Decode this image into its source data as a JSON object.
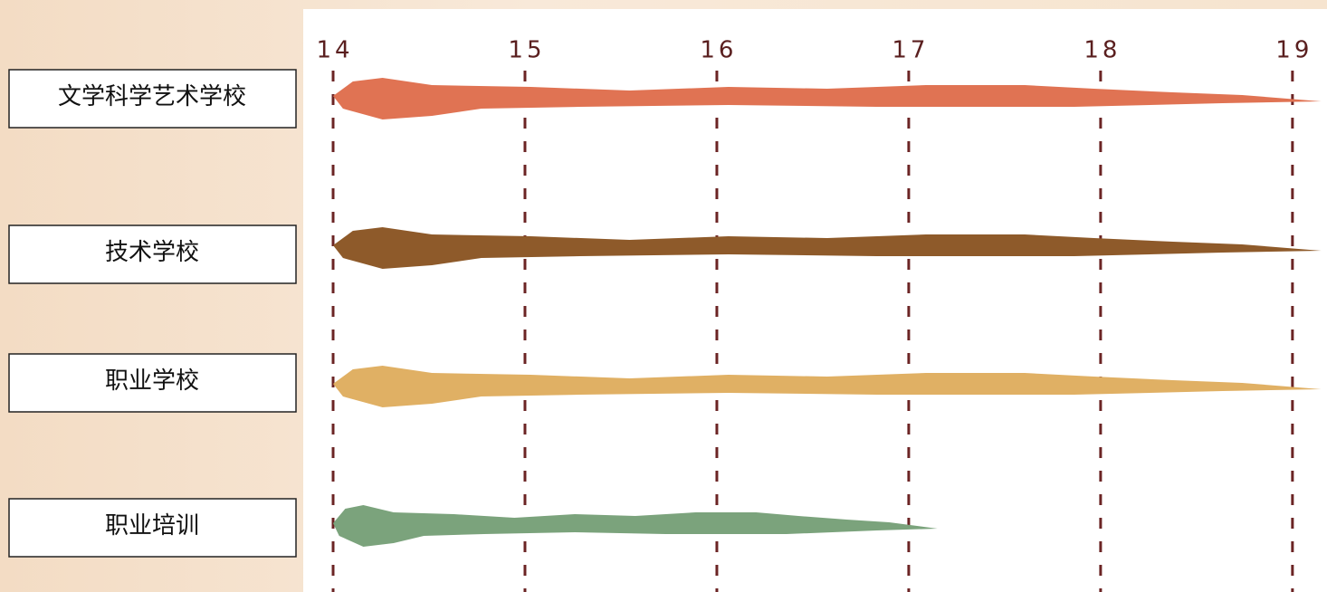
{
  "chart_data": {
    "type": "range-bar",
    "categories": [
      "文学科学艺术学校",
      "技术学校",
      "职业学校",
      "职业培训"
    ],
    "values": [
      [
        14,
        19.15
      ],
      [
        14,
        19.15
      ],
      [
        14,
        19.15
      ],
      [
        14,
        17.15
      ]
    ],
    "colors": [
      "#e07353",
      "#8e5a2a",
      "#e0b064",
      "#7ba37c"
    ],
    "xlim": [
      14,
      19.18
    ],
    "xticks": [
      14,
      15,
      16,
      17,
      18,
      19
    ],
    "grid": true
  }
}
